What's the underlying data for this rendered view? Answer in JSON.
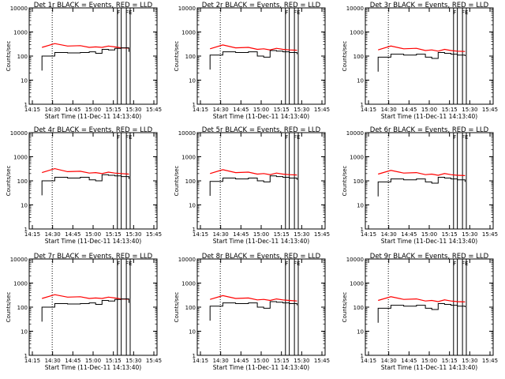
{
  "chart_data": [
    {
      "type": "line",
      "title": "Det 1r BLACK = Events, RED = LLD",
      "xlabel": "Start Time (11-Dec-11 14:13:40)",
      "ylabel": "Counts/sec",
      "x_tick_labels": [
        "14:15",
        "14:30",
        "14:45",
        "15:00",
        "15:15",
        "15:30",
        "15:45"
      ],
      "y_tick_labels": [
        "1",
        "10",
        "100",
        "1000",
        "10000"
      ],
      "ylim": [
        1,
        10000
      ],
      "y_scale": "log",
      "black_y": [
        100,
        140,
        135,
        140,
        150,
        130,
        190,
        180,
        210,
        220,
        150
      ],
      "red_y": [
        230,
        330,
        260,
        270,
        230,
        240,
        230,
        260,
        240,
        220,
        215
      ],
      "flags": [
        "F",
        "FE"
      ]
    },
    {
      "type": "line",
      "title": "Det 2r BLACK = Events, RED = LLD",
      "xlabel": "Start Time (11-Dec-11 14:13:40)",
      "ylabel": "Counts/sec",
      "x_tick_labels": [
        "14:15",
        "14:30",
        "14:45",
        "15:00",
        "15:15",
        "15:30",
        "15:45"
      ],
      "y_tick_labels": [
        "1",
        "10",
        "100",
        "1000",
        "10000"
      ],
      "ylim": [
        1,
        10000
      ],
      "y_scale": "log",
      "black_y": [
        110,
        150,
        140,
        150,
        100,
        90,
        170,
        160,
        150,
        140,
        120
      ],
      "red_y": [
        200,
        290,
        220,
        230,
        190,
        200,
        180,
        210,
        190,
        180,
        175
      ],
      "flags": [
        "F",
        "FE"
      ]
    },
    {
      "type": "line",
      "title": "Det 3r BLACK = Events, RED = LLD",
      "xlabel": "Start Time (11-Dec-11 14:13:40)",
      "ylabel": "Counts/sec",
      "x_tick_labels": [
        "14:15",
        "14:30",
        "14:45",
        "15:00",
        "15:15",
        "15:30",
        "15:45"
      ],
      "y_tick_labels": [
        "1",
        "10",
        "100",
        "1000",
        "10000"
      ],
      "ylim": [
        1,
        10000
      ],
      "y_scale": "log",
      "black_y": [
        90,
        120,
        110,
        120,
        90,
        80,
        140,
        130,
        120,
        110,
        100
      ],
      "red_y": [
        180,
        260,
        200,
        210,
        170,
        180,
        160,
        190,
        170,
        160,
        155
      ],
      "flags": [
        "F",
        "FE"
      ]
    },
    {
      "type": "line",
      "title": "Det 4r BLACK = Events, RED = LLD",
      "xlabel": "Start Time (11-Dec-11 14:13:40)",
      "ylabel": "Counts/sec",
      "x_tick_labels": [
        "14:15",
        "14:30",
        "14:45",
        "15:00",
        "15:15",
        "15:30",
        "15:45"
      ],
      "y_tick_labels": [
        "1",
        "10",
        "100",
        "1000",
        "10000"
      ],
      "ylim": [
        1,
        10000
      ],
      "y_scale": "log",
      "black_y": [
        100,
        140,
        130,
        140,
        110,
        100,
        180,
        170,
        160,
        150,
        120
      ],
      "red_y": [
        220,
        320,
        240,
        250,
        210,
        220,
        200,
        230,
        210,
        200,
        190
      ],
      "flags": [
        "F",
        "FE"
      ]
    },
    {
      "type": "line",
      "title": "Det 5r BLACK = Events, RED = LLD",
      "xlabel": "Start Time (11-Dec-11 14:13:40)",
      "ylabel": "Counts/sec",
      "x_tick_labels": [
        "14:15",
        "14:30",
        "14:45",
        "15:00",
        "15:15",
        "15:30",
        "15:45"
      ],
      "y_tick_labels": [
        "1",
        "10",
        "100",
        "1000",
        "10000"
      ],
      "ylim": [
        1,
        10000
      ],
      "y_scale": "log",
      "black_y": [
        95,
        130,
        120,
        130,
        100,
        90,
        160,
        150,
        140,
        130,
        110
      ],
      "red_y": [
        200,
        290,
        220,
        230,
        190,
        200,
        180,
        210,
        190,
        180,
        175
      ],
      "flags": [
        "F",
        "FE"
      ]
    },
    {
      "type": "line",
      "title": "Det 6r BLACK = Events, RED = LLD",
      "xlabel": "Start Time (11-Dec-11 14:13:40)",
      "ylabel": "Counts/sec",
      "x_tick_labels": [
        "14:15",
        "14:30",
        "14:45",
        "15:00",
        "15:15",
        "15:30",
        "15:45"
      ],
      "y_tick_labels": [
        "1",
        "10",
        "100",
        "1000",
        "10000"
      ],
      "ylim": [
        1,
        10000
      ],
      "y_scale": "log",
      "black_y": [
        90,
        120,
        110,
        120,
        90,
        80,
        140,
        130,
        120,
        110,
        90
      ],
      "red_y": [
        190,
        270,
        210,
        220,
        180,
        190,
        170,
        200,
        180,
        170,
        165
      ],
      "flags": [
        "F",
        "FE"
      ]
    },
    {
      "type": "line",
      "title": "Det 7r BLACK = Events, RED = LLD",
      "xlabel": "Start Time (11-Dec-11 14:13:40)",
      "ylabel": "Counts/sec",
      "x_tick_labels": [
        "14:15",
        "14:30",
        "14:45",
        "15:00",
        "15:15",
        "15:30",
        "15:45"
      ],
      "y_tick_labels": [
        "1",
        "10",
        "100",
        "1000",
        "10000"
      ],
      "ylim": [
        1,
        10000
      ],
      "y_scale": "log",
      "black_y": [
        100,
        140,
        135,
        140,
        150,
        130,
        190,
        180,
        210,
        220,
        150
      ],
      "red_y": [
        230,
        330,
        260,
        270,
        230,
        240,
        230,
        260,
        240,
        220,
        215
      ],
      "flags": [
        "F",
        "FE"
      ]
    },
    {
      "type": "line",
      "title": "Det 8r BLACK = Events, RED = LLD",
      "xlabel": "Start Time (11-Dec-11 14:13:40)",
      "ylabel": "Counts/sec",
      "x_tick_labels": [
        "14:15",
        "14:30",
        "14:45",
        "15:00",
        "15:15",
        "15:30",
        "15:45"
      ],
      "y_tick_labels": [
        "1",
        "10",
        "100",
        "1000",
        "10000"
      ],
      "ylim": [
        1,
        10000
      ],
      "y_scale": "log",
      "black_y": [
        110,
        150,
        140,
        150,
        100,
        90,
        170,
        160,
        150,
        140,
        120
      ],
      "red_y": [
        210,
        300,
        230,
        240,
        200,
        210,
        190,
        220,
        200,
        190,
        180
      ],
      "flags": [
        "F",
        "FE"
      ]
    },
    {
      "type": "line",
      "title": "Det 9r BLACK = Events, RED = LLD",
      "xlabel": "Start Time (11-Dec-11 14:13:40)",
      "ylabel": "Counts/sec",
      "x_tick_labels": [
        "14:15",
        "14:30",
        "14:45",
        "15:00",
        "15:15",
        "15:30",
        "15:45"
      ],
      "y_tick_labels": [
        "1",
        "10",
        "100",
        "1000",
        "10000"
      ],
      "ylim": [
        1,
        10000
      ],
      "y_scale": "log",
      "black_y": [
        90,
        120,
        110,
        120,
        90,
        80,
        140,
        130,
        120,
        110,
        100
      ],
      "red_y": [
        190,
        270,
        210,
        220,
        180,
        190,
        170,
        200,
        180,
        170,
        165
      ],
      "flags": [
        "F",
        "FE"
      ]
    }
  ],
  "colors": {
    "events": "#000000",
    "lld": "#ff0000",
    "axes": "#000000",
    "background": "#ffffff"
  }
}
